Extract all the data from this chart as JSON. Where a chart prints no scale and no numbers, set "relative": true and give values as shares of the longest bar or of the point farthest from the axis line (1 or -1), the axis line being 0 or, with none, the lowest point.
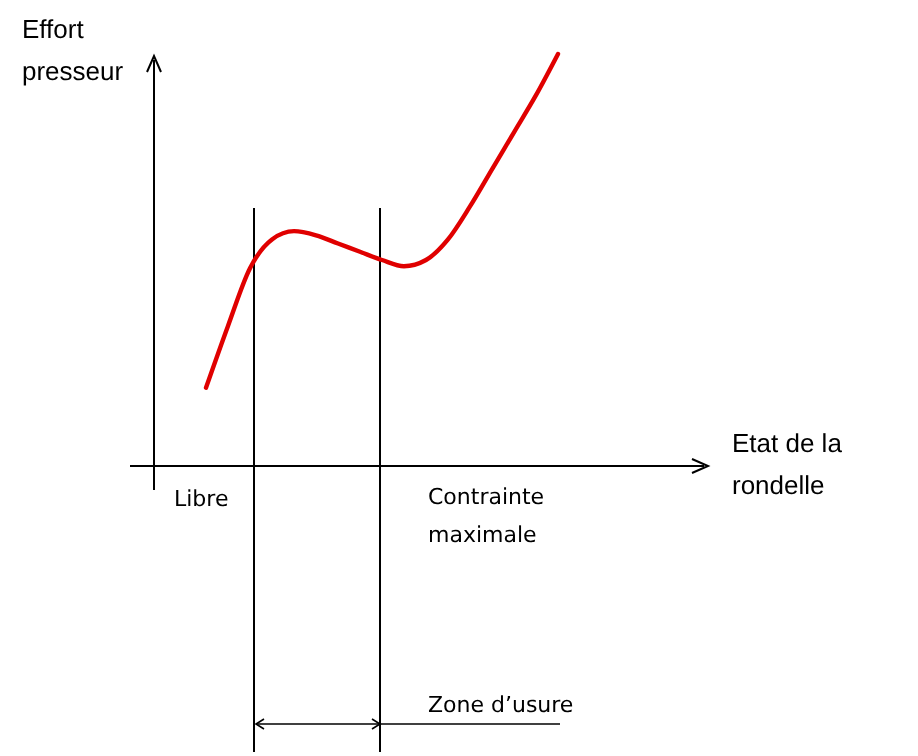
{
  "chart_data": {
    "type": "line",
    "ylabel": "Effort presseur",
    "relative": true,
    "categories": [
      null,
      null,
      null,
      null,
      null,
      null,
      null,
      null,
      null,
      null,
      null,
      null,
      null,
      null,
      null,
      null,
      null
    ],
    "series": [
      {
        "color": "#e00000",
        "values": [
          0.19,
          0.34,
          0.48,
          0.55,
          0.57,
          0.56,
          0.54,
          0.52,
          0.5,
          0.485,
          0.5,
          0.55,
          0.63,
          0.72,
          0.81,
          0.9,
          1.0
        ]
      }
    ],
    "annotations": [
      "Etat de la rondelle",
      "Libre",
      "Contrainte maximale",
      "Zone d’usure"
    ]
  }
}
